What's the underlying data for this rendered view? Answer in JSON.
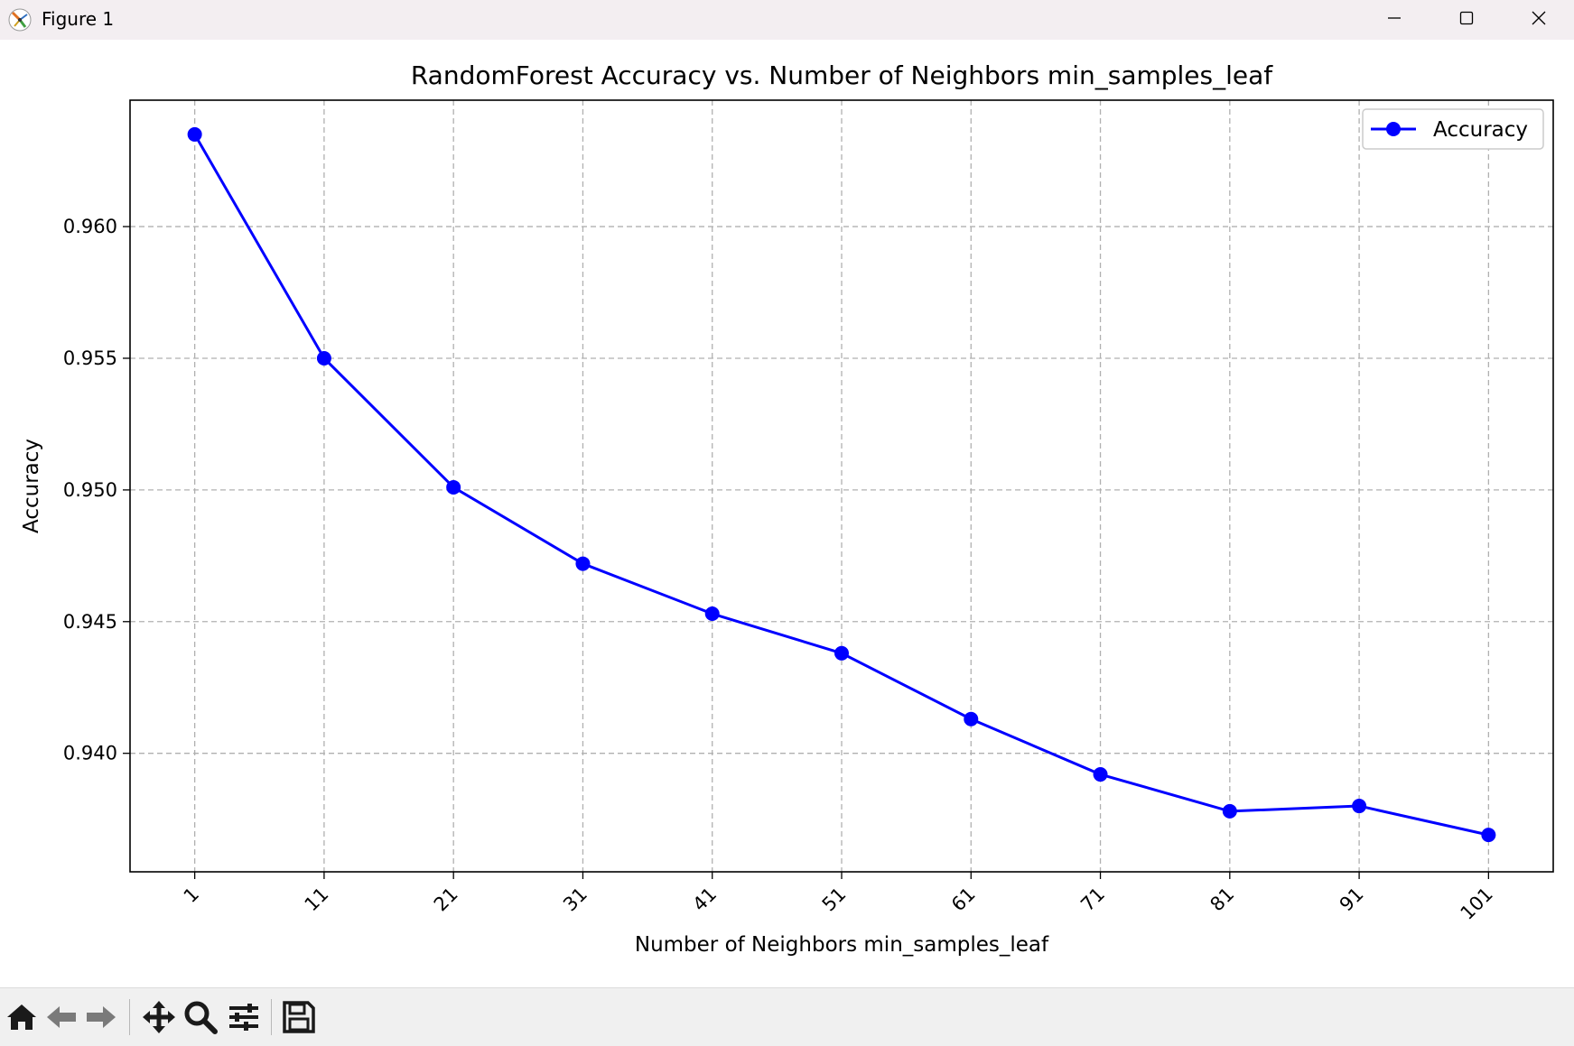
{
  "window": {
    "title": "Figure 1"
  },
  "toolbar": {
    "tools": [
      "home-icon",
      "back-arrow-icon",
      "forward-arrow-icon",
      "pan-icon",
      "zoom-icon",
      "configure-subplots-icon",
      "save-icon"
    ]
  },
  "chart_data": {
    "type": "line",
    "title": "RandomForest Accuracy vs. Number of Neighbors min_samples_leaf",
    "xlabel": "Number of Neighbors min_samples_leaf",
    "ylabel": "Accuracy",
    "x": [
      1,
      11,
      21,
      31,
      41,
      51,
      61,
      71,
      81,
      91,
      101
    ],
    "xticks": [
      "1",
      "11",
      "21",
      "31",
      "41",
      "51",
      "61",
      "71",
      "81",
      "91",
      "101"
    ],
    "xtick_rotation": 45,
    "yticks": [
      "0.940",
      "0.945",
      "0.950",
      "0.955",
      "0.960"
    ],
    "ylim": [
      0.9355,
      0.9648
    ],
    "xlim": [
      -4,
      106
    ],
    "grid": true,
    "grid_style": "dashed",
    "legend": "upper right",
    "series": [
      {
        "name": "Accuracy",
        "color": "#0000ff",
        "marker": "circle",
        "values": [
          0.9635,
          0.955,
          0.9501,
          0.9472,
          0.9453,
          0.9438,
          0.9413,
          0.9392,
          0.9378,
          0.938,
          0.9369
        ]
      }
    ]
  }
}
